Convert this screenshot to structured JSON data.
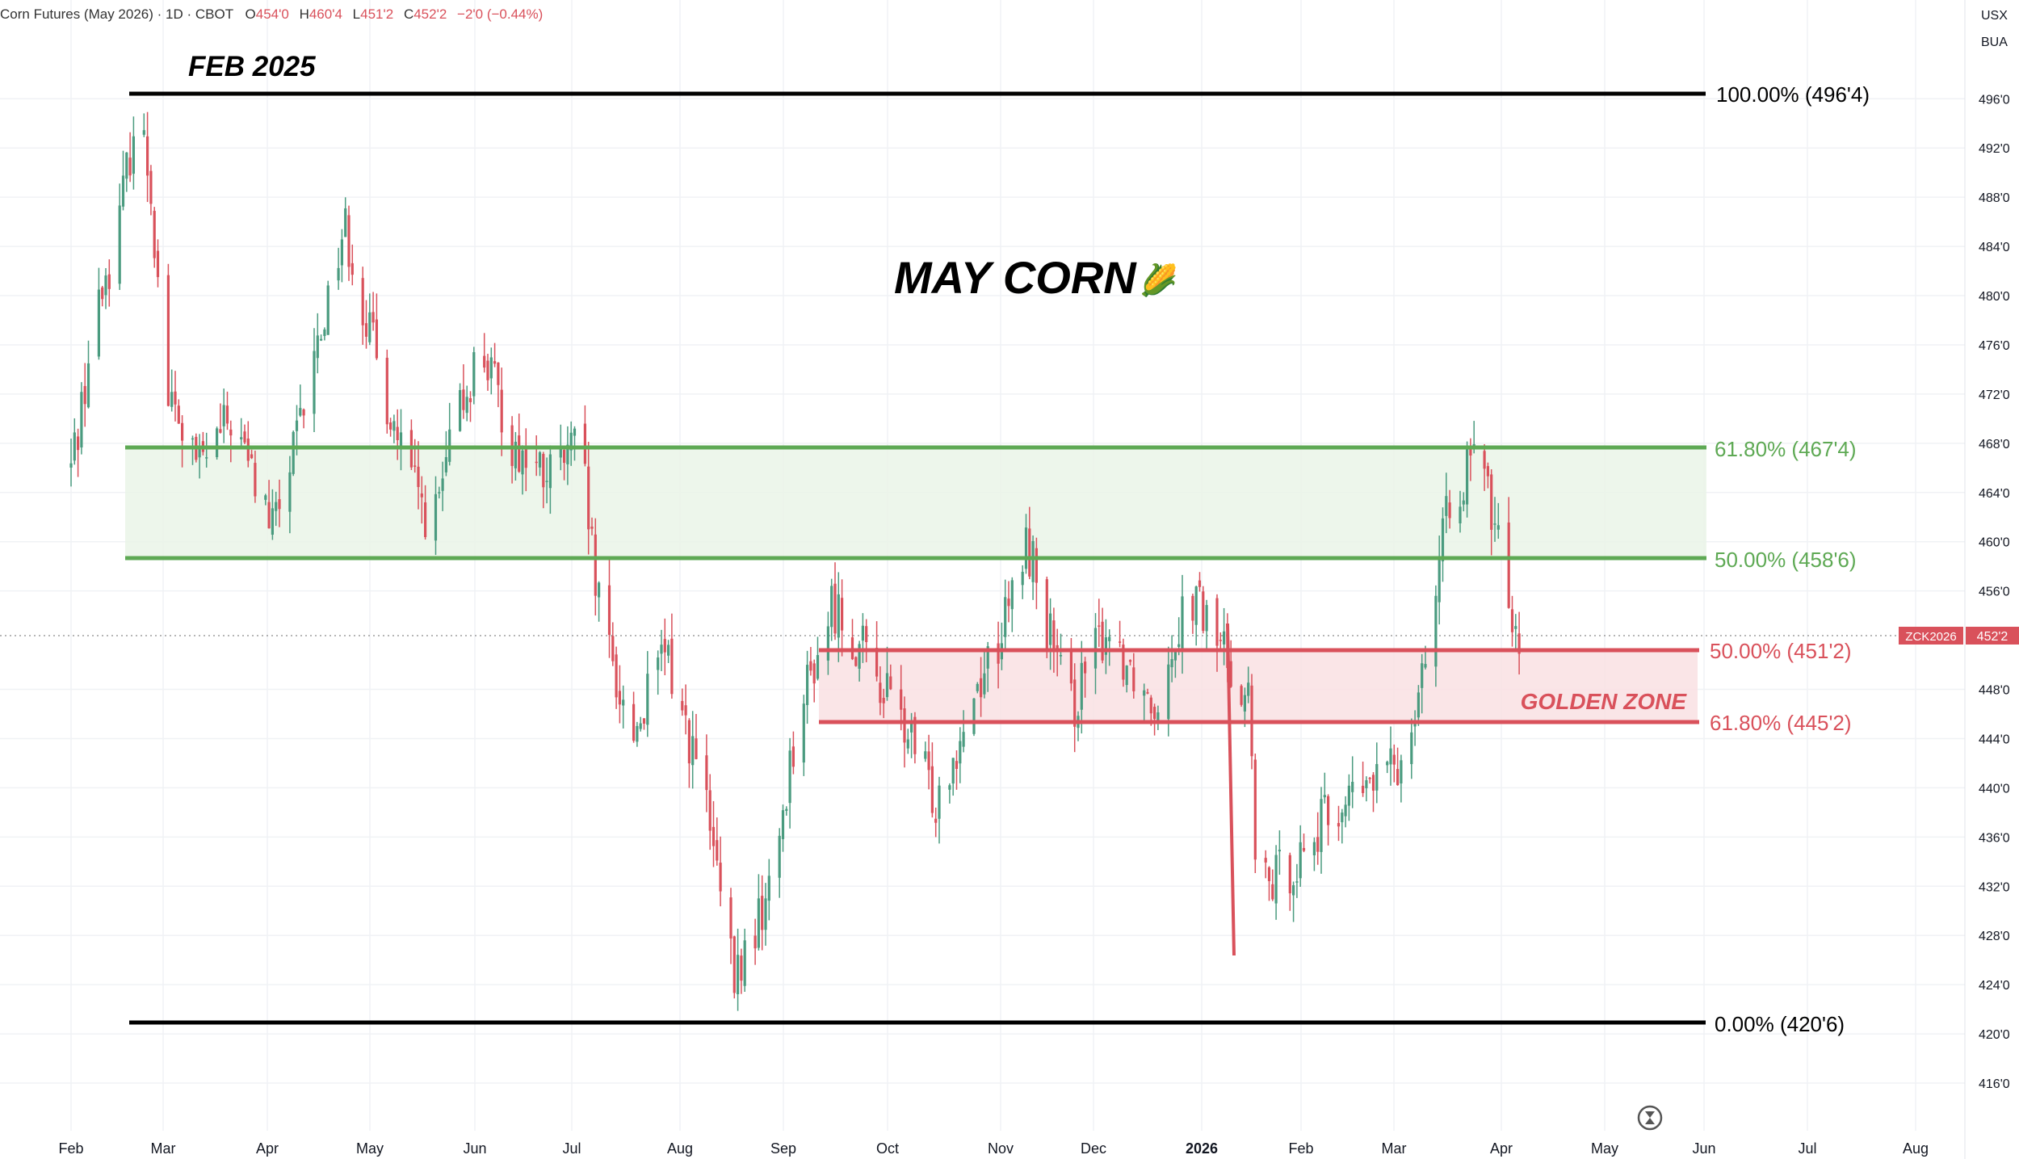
{
  "header": {
    "symbol": "Corn Futures (May 2026) · 1D · CBOT",
    "o_label": "O",
    "o_value": "454'0",
    "h_label": "H",
    "h_value": "460'4",
    "l_label": "L",
    "l_value": "451'2",
    "c_label": "C",
    "c_value": "452'2",
    "change": "−2'0 (−0.44%)"
  },
  "currency": {
    "line1": "USX",
    "line2": "BUA"
  },
  "annotations": {
    "title": "MAY CORN",
    "title_emoji": "🌽",
    "top_label": "FEB 2025",
    "golden_zone": "GOLDEN ZONE"
  },
  "fib_levels": [
    {
      "label": "100.00% (496'4)",
      "price": 496.5,
      "color": "#000000",
      "group": "main"
    },
    {
      "label": "61.80% (467'4)",
      "price": 467.5,
      "color": "#5ea954",
      "group": "green"
    },
    {
      "label": "50.00% (458'6)",
      "price": 458.75,
      "color": "#5ea954",
      "group": "green"
    },
    {
      "label": "50.00% (451'2)",
      "price": 451.25,
      "color": "#d9515b",
      "group": "red"
    },
    {
      "label": "61.80% (445'2)",
      "price": 445.25,
      "color": "#d9515b",
      "group": "red"
    },
    {
      "label": "0.00% (420'6)",
      "price": 420.75,
      "color": "#000000",
      "group": "main"
    }
  ],
  "price_tag": {
    "symbol": "ZCK2026",
    "value": "452'2"
  },
  "colors": {
    "up": "#4a9b7f",
    "down": "#d9515b",
    "green_zone": "#5ea954",
    "red_zone": "#d9515b"
  },
  "chart_data": {
    "type": "candlestick",
    "title": "MAY CORN",
    "x_axis_labels": [
      "Feb",
      "Mar",
      "Apr",
      "May",
      "Jun",
      "Jul",
      "Aug",
      "Sep",
      "Oct",
      "Nov",
      "Dec",
      "2026",
      "Feb",
      "Mar",
      "Apr",
      "May",
      "Jun",
      "Jul",
      "Aug"
    ],
    "y_axis_labels": [
      "496'0",
      "492'0",
      "488'0",
      "484'0",
      "480'0",
      "476'0",
      "472'0",
      "468'0",
      "464'0",
      "460'0",
      "456'0",
      "448'0",
      "444'0",
      "440'0",
      "436'0",
      "432'0",
      "428'0",
      "424'0",
      "420'0",
      "416'0"
    ],
    "ylim": [
      414,
      503
    ],
    "price_points": [
      {
        "date": "Feb 1 2025",
        "price": 466
      },
      {
        "date": "Feb 8 2025",
        "price": 478
      },
      {
        "date": "Feb 15 2025",
        "price": 486
      },
      {
        "date": "Feb 20 2025",
        "price": 495
      },
      {
        "date": "Feb 24 2025",
        "price": 490
      },
      {
        "date": "Mar 1 2025",
        "price": 472
      },
      {
        "date": "Mar 10 2025",
        "price": 466
      },
      {
        "date": "Mar 20 2025",
        "price": 470
      },
      {
        "date": "Apr 1 2025",
        "price": 461
      },
      {
        "date": "Apr 8 2025",
        "price": 468
      },
      {
        "date": "Apr 18 2025",
        "price": 481
      },
      {
        "date": "Apr 22 2025",
        "price": 486
      },
      {
        "date": "May 1 2025",
        "price": 475
      },
      {
        "date": "May 10 2025",
        "price": 466
      },
      {
        "date": "May 18 2025",
        "price": 461
      },
      {
        "date": "May 25 2025",
        "price": 470
      },
      {
        "date": "Jun 1 2025",
        "price": 476
      },
      {
        "date": "Jun 10 2025",
        "price": 468
      },
      {
        "date": "Jun 20 2025",
        "price": 465
      },
      {
        "date": "Jun 30 2025",
        "price": 468
      },
      {
        "date": "Jul 5 2025",
        "price": 455
      },
      {
        "date": "Jul 15 2025",
        "price": 444
      },
      {
        "date": "Jul 25 2025",
        "price": 451
      },
      {
        "date": "Aug 5 2025",
        "price": 440
      },
      {
        "date": "Aug 14 2025",
        "price": 424
      },
      {
        "date": "Aug 25 2025",
        "price": 432
      },
      {
        "date": "Sep 1 2025",
        "price": 445
      },
      {
        "date": "Sep 12 2025",
        "price": 455
      },
      {
        "date": "Sep 25 2025",
        "price": 449
      },
      {
        "date": "Oct 1 2025",
        "price": 446
      },
      {
        "date": "Oct 12 2025",
        "price": 439
      },
      {
        "date": "Oct 25 2025",
        "price": 449
      },
      {
        "date": "Nov 1 2025",
        "price": 453
      },
      {
        "date": "Nov 8 2025",
        "price": 460
      },
      {
        "date": "Nov 20 2025",
        "price": 446
      },
      {
        "date": "Dec 1 2025",
        "price": 453
      },
      {
        "date": "Dec 15 2025",
        "price": 447
      },
      {
        "date": "Dec 25 2025",
        "price": 456
      },
      {
        "date": "Jan 5 2026",
        "price": 451
      },
      {
        "date": "Jan 12 2026",
        "price": 447
      },
      {
        "date": "Jan 14 2026",
        "price": 431
      },
      {
        "date": "Jan 25 2026",
        "price": 434
      },
      {
        "date": "Feb 5 2026",
        "price": 438
      },
      {
        "date": "Feb 15 2026",
        "price": 440
      },
      {
        "date": "Feb 25 2026",
        "price": 442
      },
      {
        "date": "Mar 5 2026",
        "price": 452
      },
      {
        "date": "Mar 12 2026",
        "price": 464
      },
      {
        "date": "Mar 20 2026",
        "price": 467
      },
      {
        "date": "Mar 28 2026",
        "price": 457
      },
      {
        "date": "Apr 1 2026",
        "price": 452.25
      }
    ]
  }
}
